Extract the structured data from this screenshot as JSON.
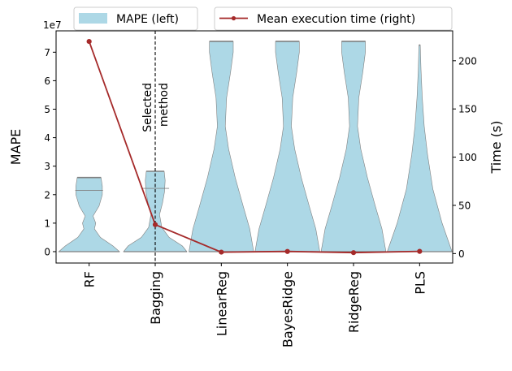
{
  "chart_data": {
    "type": "violin",
    "categories": [
      "RF",
      "Bagging",
      "LinearReg",
      "BayesRidge",
      "RidgeReg",
      "PLS"
    ],
    "left_axis": {
      "label": "MAPE",
      "multiplier": "1e7",
      "range": [
        -4000000.0,
        77500000.0
      ],
      "ticks": [
        0,
        10000000.0,
        20000000.0,
        30000000.0,
        40000000.0,
        50000000.0,
        60000000.0,
        70000000.0
      ],
      "tick_labels": [
        "0",
        "1",
        "2",
        "3",
        "4",
        "5",
        "6",
        "7"
      ]
    },
    "right_axis": {
      "label": "Time (s)",
      "range": [
        -9.8,
        231
      ],
      "ticks": [
        0,
        50,
        100,
        150,
        200
      ],
      "tick_labels": [
        "0",
        "50",
        "100",
        "150",
        "200"
      ]
    },
    "violins": [
      {
        "category": "RF",
        "max": 26000000.0,
        "mean": 21500000.0,
        "profile": [
          [
            0,
            0.92
          ],
          [
            2000000.0,
            0.72
          ],
          [
            5000000.0,
            0.34
          ],
          [
            8000000.0,
            0.16
          ],
          [
            10000000.0,
            0.2
          ],
          [
            12500000.0,
            0.12
          ],
          [
            16000000.0,
            0.3
          ],
          [
            20000000.0,
            0.4
          ],
          [
            23000000.0,
            0.4
          ],
          [
            26000000.0,
            0.36
          ]
        ]
      },
      {
        "category": "Bagging",
        "max": 28200000.0,
        "mean": 22200000.0,
        "profile": [
          [
            0,
            0.96
          ],
          [
            2000000.0,
            0.82
          ],
          [
            5000000.0,
            0.42
          ],
          [
            8500000.0,
            0.2
          ],
          [
            13000000.0,
            0.13
          ],
          [
            17000000.0,
            0.22
          ],
          [
            21000000.0,
            0.28
          ],
          [
            25000000.0,
            0.3
          ],
          [
            28200000.0,
            0.27
          ]
        ]
      },
      {
        "category": "LinearReg",
        "max": 73800000.0,
        "mean": null,
        "profile": [
          [
            0,
            0.98
          ],
          [
            8000000.0,
            0.86
          ],
          [
            16000000.0,
            0.66
          ],
          [
            26000000.0,
            0.42
          ],
          [
            36000000.0,
            0.22
          ],
          [
            44000000.0,
            0.12
          ],
          [
            54000000.0,
            0.16
          ],
          [
            63000000.0,
            0.28
          ],
          [
            70000000.0,
            0.36
          ],
          [
            73800000.0,
            0.36
          ]
        ]
      },
      {
        "category": "BayesRidge",
        "max": 73800000.0,
        "mean": null,
        "profile": [
          [
            0,
            0.98
          ],
          [
            8000000.0,
            0.86
          ],
          [
            16000000.0,
            0.66
          ],
          [
            26000000.0,
            0.42
          ],
          [
            36000000.0,
            0.22
          ],
          [
            44000000.0,
            0.12
          ],
          [
            54000000.0,
            0.16
          ],
          [
            63000000.0,
            0.28
          ],
          [
            70000000.0,
            0.36
          ],
          [
            73800000.0,
            0.36
          ]
        ]
      },
      {
        "category": "RidgeReg",
        "max": 73800000.0,
        "mean": null,
        "profile": [
          [
            0,
            0.98
          ],
          [
            8000000.0,
            0.86
          ],
          [
            16000000.0,
            0.66
          ],
          [
            26000000.0,
            0.42
          ],
          [
            36000000.0,
            0.22
          ],
          [
            44000000.0,
            0.12
          ],
          [
            54000000.0,
            0.16
          ],
          [
            63000000.0,
            0.28
          ],
          [
            70000000.0,
            0.36
          ],
          [
            73800000.0,
            0.36
          ]
        ]
      },
      {
        "category": "PLS",
        "max": 72500000.0,
        "mean": null,
        "profile": [
          [
            0,
            0.98
          ],
          [
            10000000.0,
            0.68
          ],
          [
            22000000.0,
            0.4
          ],
          [
            34000000.0,
            0.24
          ],
          [
            44000000.0,
            0.14
          ],
          [
            54000000.0,
            0.08
          ],
          [
            64000000.0,
            0.04
          ],
          [
            72500000.0,
            0.02
          ]
        ]
      }
    ],
    "series": [
      {
        "name": "Mean execution time (right)",
        "axis": "right",
        "values": [
          220,
          30,
          1.5,
          2.2,
          1.0,
          2.3
        ]
      }
    ],
    "legend": {
      "placement": "top",
      "entries": [
        "MAPE (left)",
        "Mean execution time (right)"
      ]
    },
    "annotation": {
      "category": "Bagging",
      "line1": "Selected",
      "line2": "method"
    },
    "grid": false,
    "colors": {
      "violin_fill": "#add8e6",
      "violin_edge": "#808080",
      "line": "#a52a2a",
      "axis": "#000000"
    }
  }
}
